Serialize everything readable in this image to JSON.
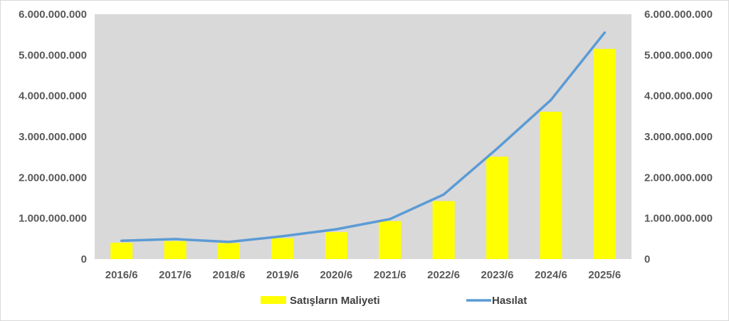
{
  "chart_data": {
    "type": "bar",
    "title": "",
    "xlabel": "",
    "ylabel": "",
    "categories": [
      "2016/6",
      "2017/6",
      "2018/6",
      "2019/6",
      "2020/6",
      "2021/6",
      "2022/6",
      "2023/6",
      "2024/6",
      "2025/6"
    ],
    "series": [
      {
        "name": "Satışların Maliyeti",
        "type": "bar",
        "color": "#ffff00",
        "values": [
          400000000,
          440000000,
          390000000,
          510000000,
          660000000,
          930000000,
          1420000000,
          2510000000,
          3610000000,
          5150000000
        ]
      },
      {
        "name": "Hasılat",
        "type": "line",
        "color": "#5b9bd5",
        "values": [
          450000000,
          490000000,
          420000000,
          560000000,
          730000000,
          980000000,
          1580000000,
          2710000000,
          3900000000,
          5550000000
        ]
      }
    ],
    "ylim": [
      0,
      6000000000
    ],
    "y_ticks": [
      "0",
      "1.000.000.000",
      "2.000.000.000",
      "3.000.000.000",
      "4.000.000.000",
      "5.000.000.000",
      "6.000.000.000"
    ],
    "secondary_y_ticks": [
      "0",
      "1.000.000.000",
      "2.000.000.000",
      "3.000.000.000",
      "4.000.000.000",
      "5.000.000.000",
      "6.000.000.000"
    ],
    "plot_background": "#d9d9d9",
    "grid": false,
    "legend_position": "bottom"
  }
}
